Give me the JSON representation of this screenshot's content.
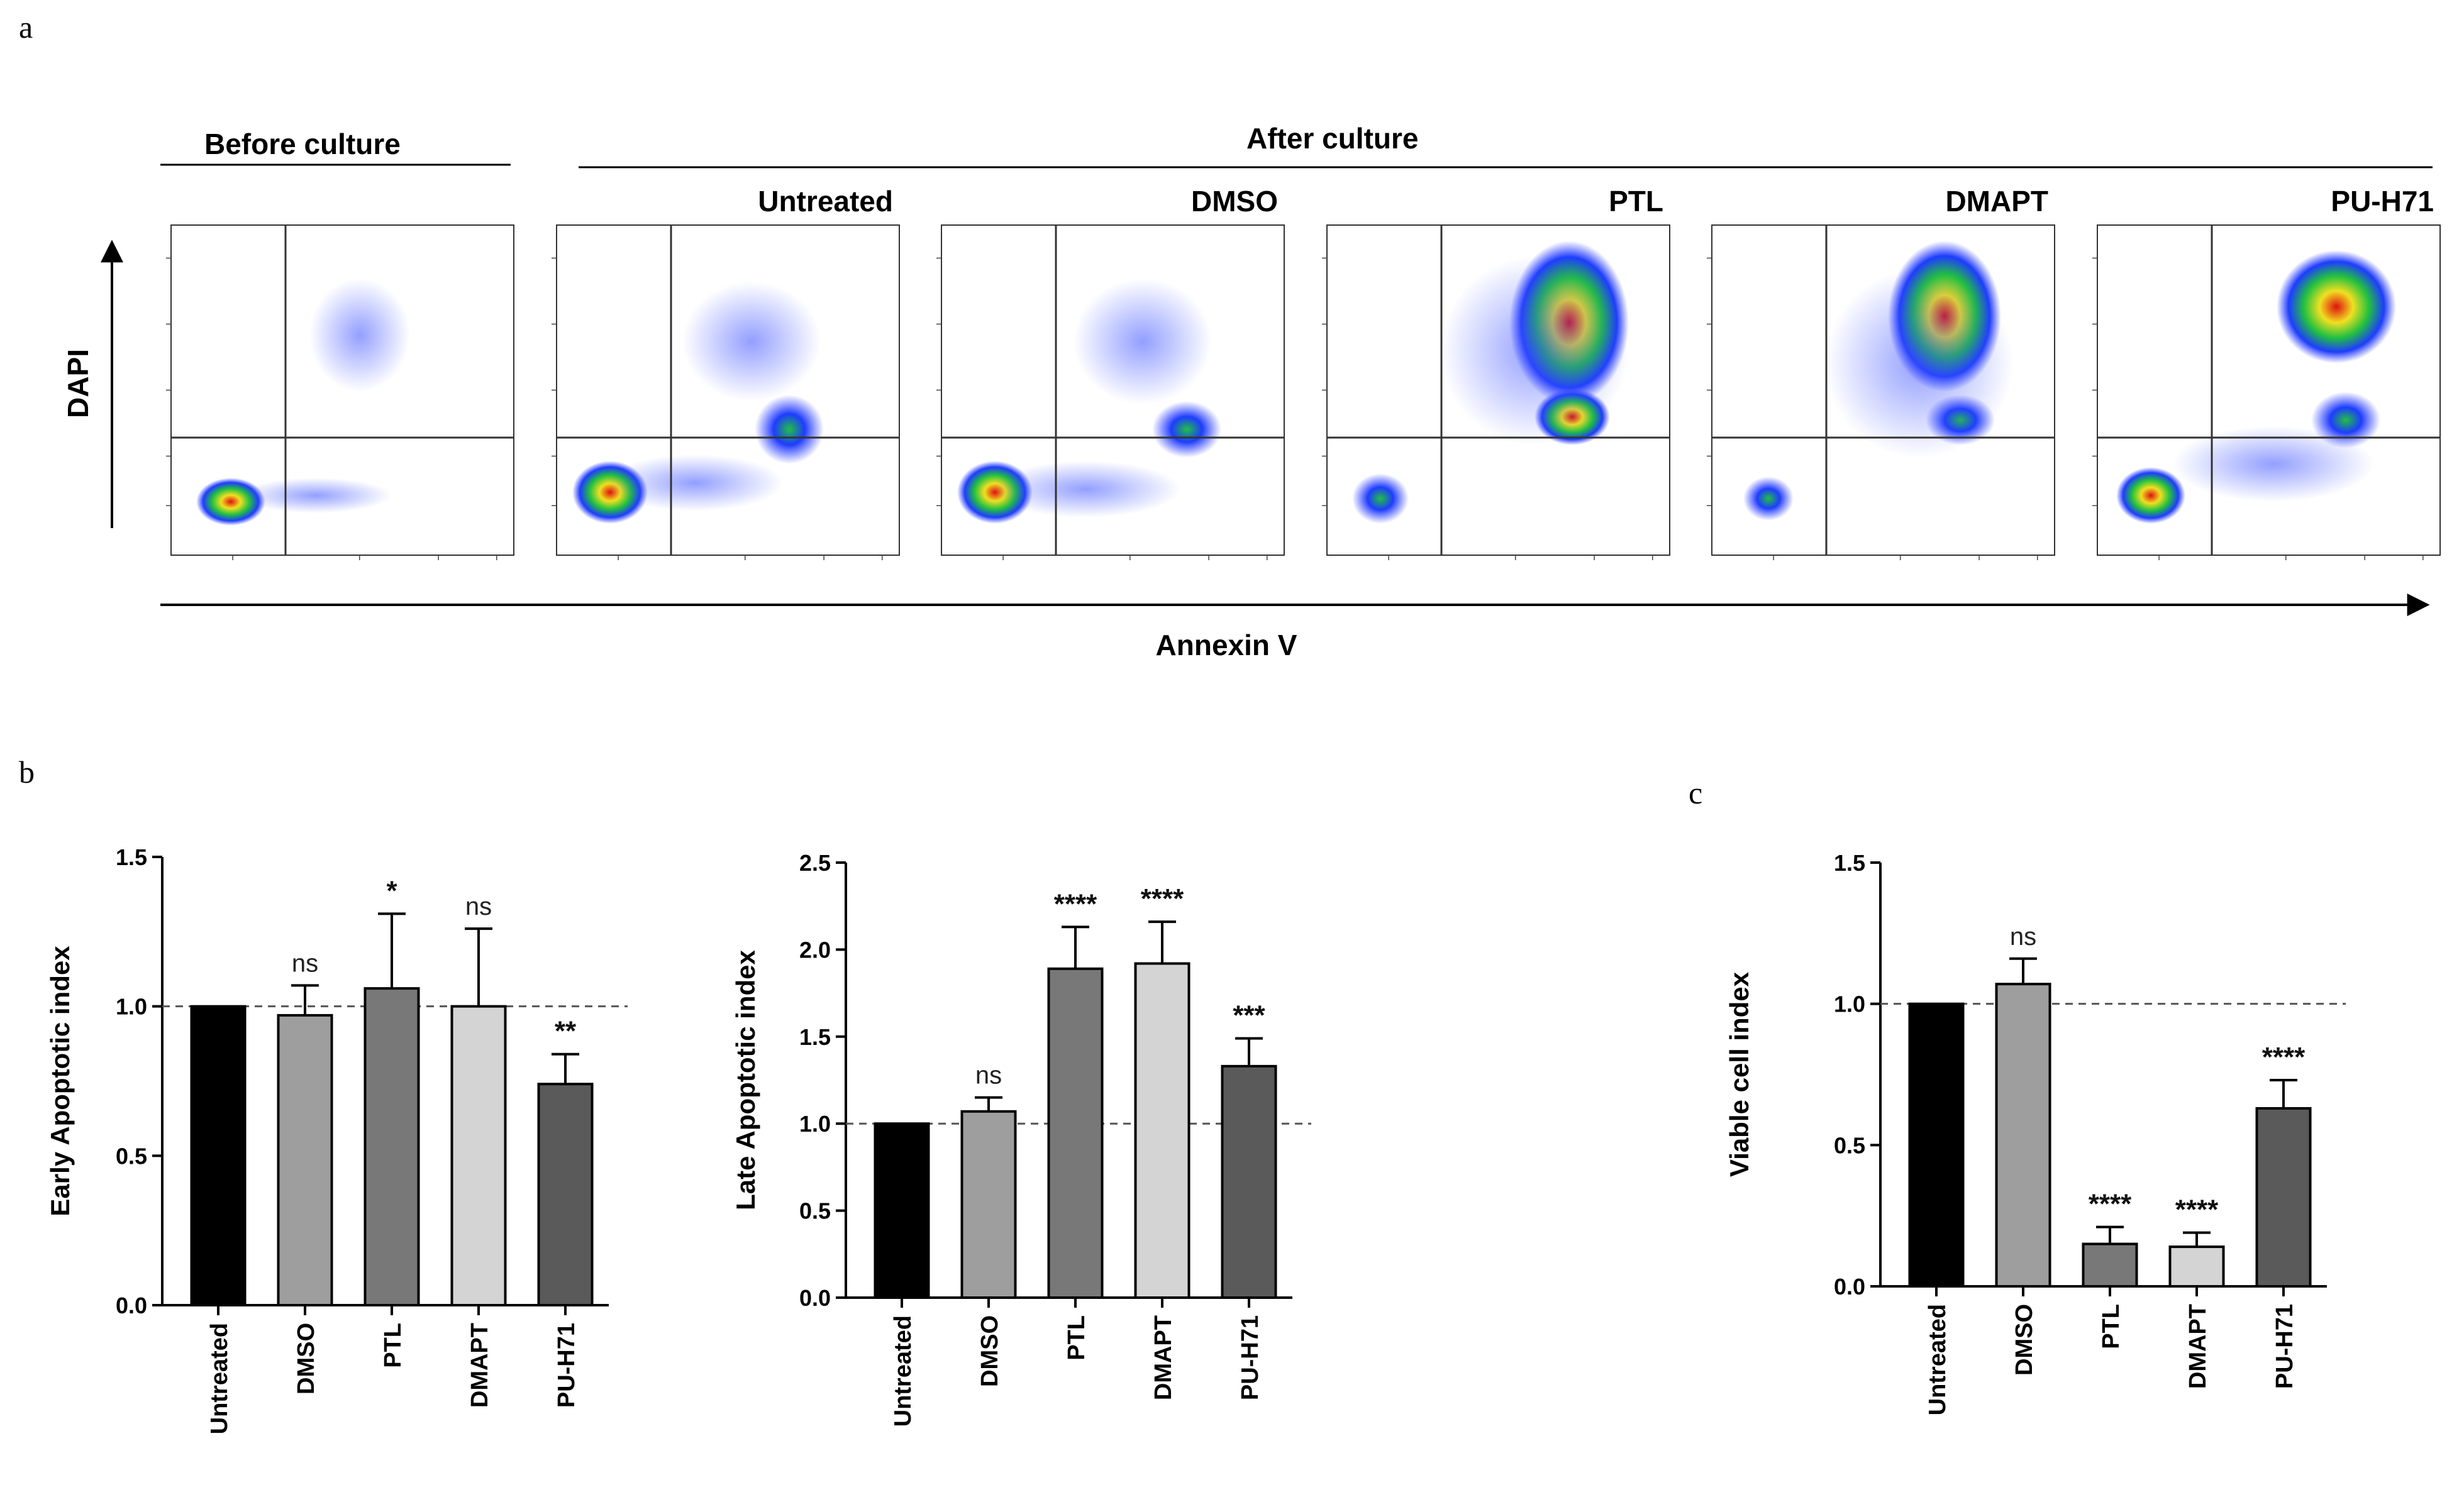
{
  "panel_labels": {
    "a": "a",
    "b": "b",
    "c": "c"
  },
  "panel_a": {
    "before_header": "Before culture",
    "after_header": "After culture",
    "y_axis": "DAPI",
    "x_axis": "Annexin V",
    "plots": [
      {
        "label": "Before culture",
        "title": ""
      },
      {
        "label": "Untreated",
        "title": "Untreated"
      },
      {
        "label": "DMSO",
        "title": "DMSO"
      },
      {
        "label": "PTL",
        "title": "PTL"
      },
      {
        "label": "DMAPT",
        "title": "DMAPT"
      },
      {
        "label": "PU-H71",
        "title": "PU-H71"
      }
    ]
  },
  "chart_data": [
    {
      "type": "bar",
      "categories": [
        "Untreated",
        "DMSO",
        "PTL",
        "DMAPT",
        "PU-H71"
      ],
      "values": [
        1.0,
        0.97,
        1.06,
        1.0,
        0.74
      ],
      "errors": [
        0.0,
        0.1,
        0.25,
        0.26,
        0.1
      ],
      "significance": [
        "",
        "ns",
        "*",
        "ns",
        "**"
      ],
      "title": "",
      "xlabel": "",
      "ylabel": "Early Apoptotic index",
      "ylim": [
        0,
        1.5
      ],
      "yticks": [
        0.0,
        0.5,
        1.0,
        1.5
      ],
      "ytick_labels": [
        "0.0",
        "0.5",
        "1.0",
        "1.5"
      ],
      "reference_line": 1.0,
      "colors": [
        "#000000",
        "#9e9e9e",
        "#787878",
        "#d4d4d4",
        "#5a5a5a"
      ]
    },
    {
      "type": "bar",
      "categories": [
        "Untreated",
        "DMSO",
        "PTL",
        "DMAPT",
        "PU-H71"
      ],
      "values": [
        1.0,
        1.07,
        1.89,
        1.92,
        1.33
      ],
      "errors": [
        0.0,
        0.08,
        0.24,
        0.24,
        0.16
      ],
      "significance": [
        "",
        "ns",
        "****",
        "****",
        "***"
      ],
      "title": "",
      "xlabel": "",
      "ylabel": "Late Apoptotic index",
      "ylim": [
        0,
        2.5
      ],
      "yticks": [
        0.0,
        0.5,
        1.0,
        1.5,
        2.0,
        2.5
      ],
      "ytick_labels": [
        "0.0",
        "0.5",
        "1.0",
        "1.5",
        "2.0",
        "2.5"
      ],
      "reference_line": 1.0,
      "colors": [
        "#000000",
        "#9e9e9e",
        "#787878",
        "#d4d4d4",
        "#5a5a5a"
      ]
    },
    {
      "type": "bar",
      "categories": [
        "Untreated",
        "DMSO",
        "PTL",
        "DMAPT",
        "PU-H71"
      ],
      "values": [
        1.0,
        1.07,
        0.15,
        0.14,
        0.63
      ],
      "errors": [
        0.0,
        0.09,
        0.06,
        0.05,
        0.1
      ],
      "significance": [
        "",
        "ns",
        "****",
        "****",
        "****"
      ],
      "title": "",
      "xlabel": "",
      "ylabel": "Viable cell index",
      "ylim": [
        0,
        1.5
      ],
      "yticks": [
        0.0,
        0.5,
        1.0,
        1.5
      ],
      "ytick_labels": [
        "0.0",
        "0.5",
        "1.0",
        "1.5"
      ],
      "reference_line": 1.0,
      "colors": [
        "#000000",
        "#9e9e9e",
        "#787878",
        "#d4d4d4",
        "#5a5a5a"
      ]
    }
  ]
}
